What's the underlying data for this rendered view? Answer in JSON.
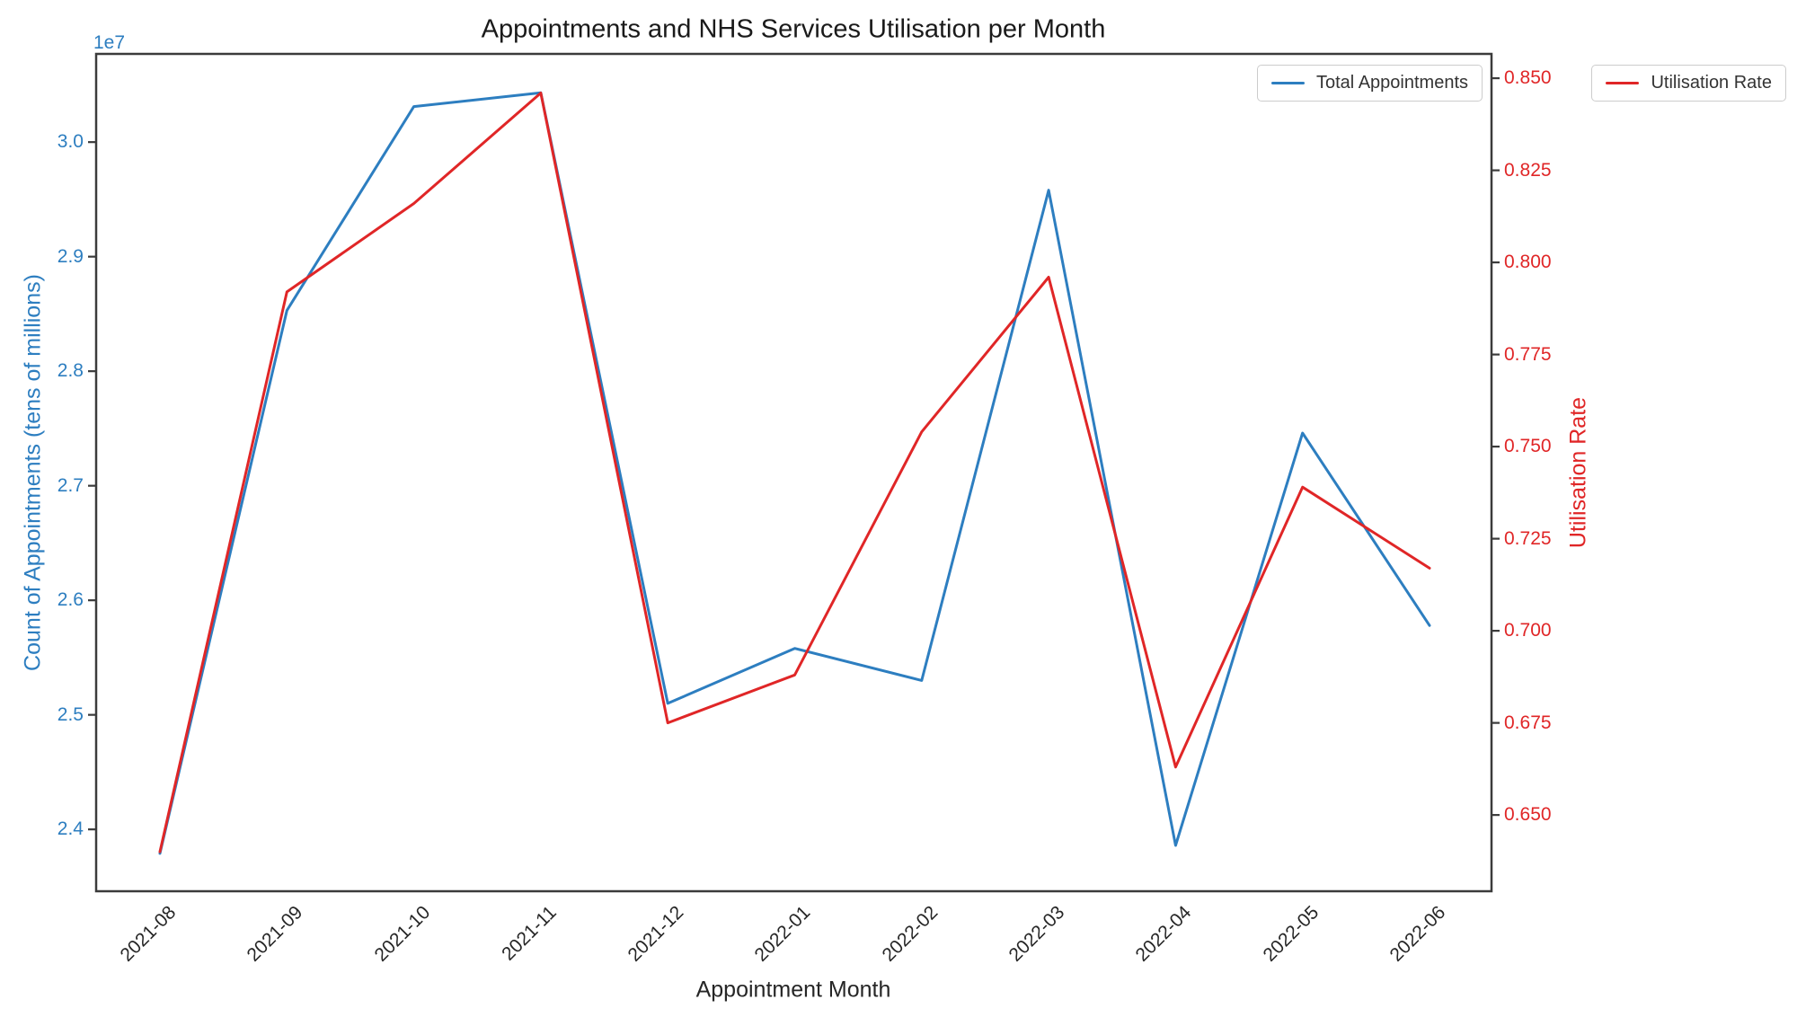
{
  "chart_data": {
    "type": "line",
    "title": "Appointments and NHS Services Utilisation per Month",
    "xlabel": "Appointment Month",
    "ylabel_left": "Count of Appointments (tens of millions)",
    "ylabel_right": "Utilisation Rate",
    "categories": [
      "2021-08",
      "2021-09",
      "2021-10",
      "2021-11",
      "2021-12",
      "2022-01",
      "2022-02",
      "2022-03",
      "2022-04",
      "2022-05",
      "2022-06"
    ],
    "series": [
      {
        "name": "Total Appointments",
        "axis": "left",
        "color": "#2d7ec0",
        "values": [
          23790000,
          28530000,
          30310000,
          30430000,
          25100000,
          25580000,
          25300000,
          29580000,
          23860000,
          27460000,
          25780000
        ]
      },
      {
        "name": "Utilisation Rate",
        "axis": "right",
        "color": "#e02627",
        "values": [
          0.64,
          0.792,
          0.816,
          0.846,
          0.675,
          0.688,
          0.754,
          0.796,
          0.663,
          0.739,
          0.717
        ]
      }
    ],
    "left_axis": {
      "offset_label": "1e7",
      "lim": [
        23460000,
        30770000
      ],
      "tick_values": [
        24000000,
        25000000,
        26000000,
        27000000,
        28000000,
        29000000,
        30000000
      ],
      "tick_labels": [
        "2.4",
        "2.5",
        "2.6",
        "2.7",
        "2.8",
        "2.9",
        "3.0"
      ]
    },
    "right_axis": {
      "lim": [
        0.6293,
        0.8566
      ],
      "tick_values": [
        0.65,
        0.675,
        0.7,
        0.725,
        0.75,
        0.775,
        0.8,
        0.825,
        0.85
      ],
      "tick_labels": [
        "0.650",
        "0.675",
        "0.700",
        "0.725",
        "0.750",
        "0.775",
        "0.800",
        "0.825",
        "0.850"
      ]
    },
    "legend_position": {
      "total_appointments": "upper right inside axes",
      "utilisation_rate": "upper right outside axes"
    },
    "grid": false,
    "spine_color": "#3b3b3b",
    "xtick_label_color": "#262626"
  }
}
